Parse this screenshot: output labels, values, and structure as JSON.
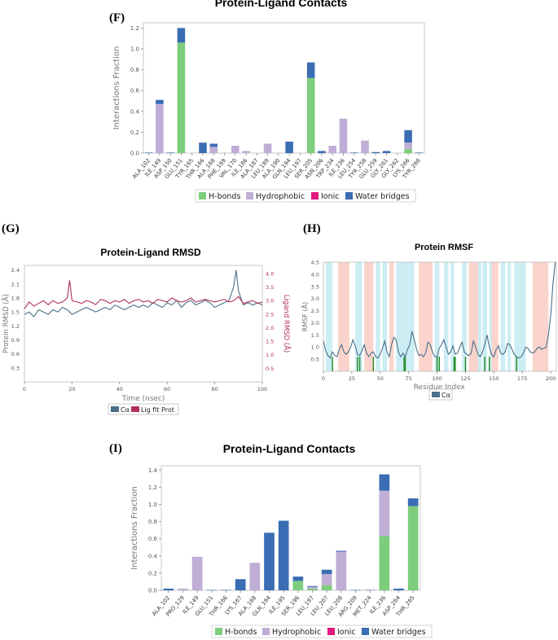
{
  "panel_letters": {
    "f": "(F)",
    "g": "(G)",
    "h": "(H)",
    "i": "(I)"
  },
  "colors": {
    "hbond": "#7ccd7c",
    "hydrophobic": "#c0aed6",
    "ionic": "#e01880",
    "water": "#3a6db3",
    "protein_line": "#4a7088",
    "ligand_line": "#b0305c",
    "contact_line": "#1f8a1f",
    "strand_band": "#ccedf4",
    "helix_band": "#fad4cc"
  },
  "chart_data": [
    {
      "id": "F",
      "type": "bar",
      "stacked": true,
      "title": "Protein-Ligand Contacts",
      "ylabel": "Interactions Fraction",
      "ylim": [
        0,
        1.25
      ],
      "yticks": [
        0.0,
        0.2,
        0.4,
        0.6,
        0.8,
        1.0,
        1.2
      ],
      "categories": [
        "ALA_102",
        "ILE_149",
        "ASP_150",
        "GLU_151",
        "TYR_165",
        "THR_166",
        "ALA_168",
        "PHE_169",
        "VAL_170",
        "ILE_186",
        "ALA_187",
        "LEU_189",
        "ALA_190",
        "GLN_194",
        "LEU_197",
        "SER_205",
        "ASN_206",
        "TRP_234",
        "ILE_236",
        "LEU_254",
        "TYR_258",
        "GLU_259",
        "GLY_261",
        "GLY_262",
        "LYS_266",
        "TYR_268"
      ],
      "series": [
        {
          "name": "H-bonds",
          "values": [
            0,
            0,
            0,
            1.06,
            0,
            0,
            0,
            0,
            0,
            0,
            0,
            0,
            0,
            0,
            0,
            0.72,
            0,
            0,
            0,
            0,
            0,
            0,
            0,
            0,
            0.04,
            0
          ]
        },
        {
          "name": "Hydrophobic",
          "values": [
            0,
            0.47,
            0,
            0,
            0,
            0,
            0.06,
            0,
            0.07,
            0.02,
            0,
            0.09,
            0,
            0,
            0,
            0,
            0,
            0.07,
            0.33,
            0,
            0.12,
            0,
            0,
            0,
            0.06,
            0
          ]
        },
        {
          "name": "Ionic",
          "values": [
            0,
            0,
            0,
            0,
            0,
            0,
            0,
            0,
            0,
            0,
            0,
            0,
            0,
            0,
            0,
            0,
            0,
            0,
            0,
            0,
            0,
            0,
            0,
            0,
            0,
            0
          ]
        },
        {
          "name": "Water bridges",
          "values": [
            0.005,
            0.04,
            0.005,
            0.14,
            0,
            0.1,
            0.03,
            0,
            0,
            0,
            0,
            0,
            0,
            0.11,
            0,
            0.15,
            0.02,
            0,
            0,
            0.005,
            0,
            0.01,
            0.02,
            0,
            0.12,
            0.005
          ]
        }
      ],
      "legend": [
        "H-bonds",
        "Hydrophobic",
        "Ionic",
        "Water bridges"
      ],
      "legend_position": "bottom-center"
    },
    {
      "id": "G",
      "type": "line",
      "title": "Protein-Ligand RMSD",
      "xlabel": "Time (nsec)",
      "ylabel": "Protein RMSD (Å)",
      "y2label": "Ligand RMSD (Å)",
      "xlim": [
        0,
        100
      ],
      "ylim": [
        0,
        2.5
      ],
      "y2lim": [
        0,
        4.3
      ],
      "xticks": [
        0,
        20,
        40,
        60,
        80,
        100
      ],
      "yticks": [
        0.3,
        0.6,
        0.9,
        1.2,
        1.5,
        1.8,
        2.1,
        2.4
      ],
      "y2ticks": [
        0.5,
        1.0,
        1.5,
        2.0,
        2.5,
        3.0,
        3.5,
        4.0
      ],
      "series": [
        {
          "name": "Cα",
          "axis": "left",
          "x": [
            0,
            2,
            4,
            6,
            8,
            10,
            12,
            14,
            16,
            18,
            20,
            22,
            24,
            26,
            28,
            30,
            32,
            34,
            36,
            38,
            40,
            42,
            44,
            46,
            48,
            50,
            52,
            54,
            56,
            58,
            60,
            62,
            64,
            66,
            68,
            70,
            72,
            74,
            76,
            78,
            80,
            82,
            84,
            86,
            88,
            89,
            90,
            91,
            92,
            94,
            96,
            98,
            100
          ],
          "y": [
            1.45,
            1.5,
            1.4,
            1.55,
            1.5,
            1.45,
            1.55,
            1.5,
            1.6,
            1.55,
            1.45,
            1.5,
            1.55,
            1.6,
            1.55,
            1.5,
            1.55,
            1.6,
            1.55,
            1.65,
            1.6,
            1.55,
            1.6,
            1.65,
            1.6,
            1.65,
            1.6,
            1.7,
            1.65,
            1.6,
            1.7,
            1.65,
            1.75,
            1.6,
            1.7,
            1.75,
            1.65,
            1.7,
            1.75,
            1.7,
            1.6,
            1.65,
            1.7,
            1.75,
            2.05,
            2.4,
            1.95,
            1.8,
            1.65,
            1.7,
            1.65,
            1.7,
            1.65
          ]
        },
        {
          "name": "Lig fit Prot",
          "axis": "right",
          "x": [
            0,
            2,
            4,
            6,
            8,
            10,
            12,
            14,
            16,
            18,
            19,
            20,
            22,
            24,
            26,
            28,
            30,
            32,
            34,
            36,
            38,
            40,
            42,
            44,
            46,
            48,
            50,
            52,
            54,
            56,
            58,
            60,
            62,
            64,
            66,
            68,
            70,
            72,
            74,
            76,
            78,
            80,
            82,
            84,
            86,
            88,
            90,
            92,
            94,
            96,
            98,
            100
          ],
          "y": [
            2.7,
            2.95,
            2.8,
            2.9,
            3.0,
            2.85,
            3.0,
            2.9,
            2.95,
            3.1,
            3.75,
            3.0,
            2.95,
            2.9,
            3.0,
            2.95,
            2.85,
            3.05,
            3.0,
            2.9,
            3.0,
            2.95,
            3.05,
            2.9,
            3.0,
            3.05,
            2.95,
            3.0,
            2.9,
            3.05,
            3.0,
            2.95,
            3.1,
            3.0,
            2.95,
            3.0,
            3.1,
            2.95,
            3.0,
            3.05,
            3.0,
            2.95,
            3.0,
            3.05,
            2.95,
            3.0,
            3.15,
            2.9,
            2.95,
            3.0,
            2.9,
            2.95
          ]
        }
      ],
      "legend": [
        "Cα",
        "Lig fit Prot"
      ],
      "legend_position": "bottom-center"
    },
    {
      "id": "H",
      "type": "line",
      "title": "Protein RMSF",
      "xlabel": "Residue Index",
      "ylabel": "RMSF (Å)",
      "xlim": [
        0,
        205
      ],
      "ylim": [
        0,
        4.5
      ],
      "xticks": [
        0,
        25,
        50,
        75,
        100,
        125,
        150,
        175,
        200
      ],
      "yticks": [
        0.5,
        1.0,
        1.5,
        2.0,
        2.5,
        3.0,
        3.5,
        4.0,
        4.5
      ],
      "strand_regions": [
        [
          2,
          8
        ],
        [
          28,
          34
        ],
        [
          46,
          50
        ],
        [
          52,
          56
        ],
        [
          64,
          80
        ],
        [
          98,
          102
        ],
        [
          106,
          110
        ],
        [
          112,
          115
        ],
        [
          122,
          126
        ],
        [
          136,
          139
        ],
        [
          140,
          144
        ],
        [
          146,
          148
        ],
        [
          156,
          160
        ],
        [
          162,
          165
        ],
        [
          168,
          178
        ]
      ],
      "helix_regions": [
        [
          13,
          23
        ],
        [
          36,
          44
        ],
        [
          58,
          62
        ],
        [
          84,
          96
        ],
        [
          128,
          136
        ],
        [
          148,
          154
        ],
        [
          184,
          198
        ]
      ],
      "contact_residues": [
        8,
        30,
        32,
        44,
        71,
        72,
        100,
        102,
        115,
        116,
        125,
        142,
        146,
        170
      ],
      "series": [
        {
          "name": "Cα",
          "x": [
            0,
            2,
            4,
            6,
            8,
            10,
            12,
            14,
            16,
            18,
            20,
            22,
            24,
            26,
            28,
            30,
            32,
            34,
            36,
            38,
            40,
            42,
            44,
            46,
            48,
            50,
            52,
            54,
            56,
            58,
            60,
            62,
            64,
            66,
            68,
            70,
            72,
            74,
            76,
            78,
            80,
            82,
            84,
            86,
            88,
            90,
            92,
            94,
            96,
            98,
            100,
            102,
            104,
            106,
            108,
            110,
            112,
            114,
            116,
            118,
            120,
            122,
            124,
            126,
            128,
            130,
            132,
            134,
            136,
            138,
            140,
            142,
            144,
            146,
            148,
            150,
            152,
            154,
            156,
            158,
            160,
            162,
            164,
            166,
            168,
            170,
            172,
            174,
            176,
            178,
            180,
            182,
            184,
            186,
            188,
            190,
            192,
            194,
            196,
            198,
            200,
            202,
            204
          ],
          "y": [
            1.25,
            0.85,
            0.65,
            0.55,
            0.8,
            0.65,
            0.6,
            0.9,
            1.1,
            0.8,
            0.7,
            0.8,
            1.0,
            1.3,
            1.05,
            0.7,
            0.65,
            0.85,
            1.1,
            0.75,
            0.6,
            0.75,
            0.8,
            0.6,
            0.55,
            0.7,
            0.95,
            1.25,
            0.8,
            0.6,
            1.1,
            1.4,
            1.3,
            0.8,
            0.6,
            0.75,
            0.6,
            0.9,
            1.1,
            1.65,
            1.3,
            0.9,
            0.65,
            0.7,
            0.6,
            0.75,
            1.2,
            1.1,
            0.8,
            0.6,
            0.6,
            0.95,
            1.1,
            1.3,
            1.0,
            0.7,
            0.8,
            1.05,
            0.7,
            0.75,
            1.0,
            1.2,
            0.8,
            0.7,
            0.65,
            0.75,
            1.25,
            1.0,
            0.7,
            0.6,
            0.8,
            1.1,
            1.5,
            1.0,
            0.7,
            0.6,
            0.9,
            1.05,
            0.75,
            0.7,
            0.8,
            1.15,
            1.1,
            0.9,
            0.7,
            0.6,
            0.55,
            0.6,
            0.75,
            1.0,
            0.95,
            0.8,
            0.75,
            0.8,
            0.95,
            1.0,
            0.9,
            0.95,
            1.0,
            1.5,
            2.3,
            3.6,
            4.5
          ]
        }
      ],
      "legend": [
        "Cα"
      ],
      "legend_position": "bottom-center"
    },
    {
      "id": "I",
      "type": "bar",
      "stacked": true,
      "title": "Protein-Ligand Contacts",
      "ylabel": "Interactions Fraction",
      "ylim": [
        0,
        1.45
      ],
      "yticks": [
        0.0,
        0.2,
        0.4,
        0.6,
        0.8,
        1.0,
        1.2,
        1.4
      ],
      "categories": [
        "ALA_102",
        "PRO_129",
        "ILE_149",
        "GLU_151",
        "THR_166",
        "LYS_167",
        "ALA_168",
        "GLN_194",
        "ILE_195",
        "SER_196",
        "LEU_197",
        "LEU_207",
        "LEU_208",
        "ARG_209",
        "MET_224",
        "ILE_236",
        "ASP_264",
        "THR_265"
      ],
      "series": [
        {
          "name": "H-bonds",
          "values": [
            0,
            0,
            0,
            0,
            0,
            0,
            0,
            0,
            0,
            0.11,
            0.02,
            0.06,
            0,
            0,
            0,
            0.63,
            0,
            0.98
          ]
        },
        {
          "name": "Hydrophobic",
          "values": [
            0,
            0.02,
            0.39,
            0,
            0,
            0,
            0.32,
            0,
            0,
            0,
            0.02,
            0.13,
            0.45,
            0,
            0.01,
            0.53,
            0,
            0
          ]
        },
        {
          "name": "Ionic",
          "values": [
            0,
            0,
            0,
            0,
            0,
            0,
            0,
            0,
            0,
            0,
            0,
            0,
            0,
            0,
            0,
            0,
            0,
            0
          ]
        },
        {
          "name": "Water bridges",
          "values": [
            0.02,
            0,
            0,
            0.005,
            0.005,
            0.13,
            0,
            0.67,
            0.81,
            0.05,
            0.01,
            0.05,
            0.01,
            0.005,
            0,
            0.19,
            0.02,
            0.09
          ]
        }
      ],
      "legend": [
        "H-bonds",
        "Hydrophobic",
        "Ionic",
        "Water bridges"
      ],
      "legend_position": "bottom-center"
    }
  ]
}
